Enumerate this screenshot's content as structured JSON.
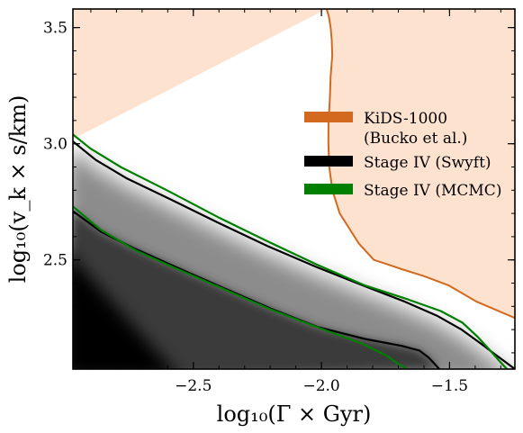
{
  "chart_data": {
    "type": "contour",
    "xlabel": "log₁₀(Γ × Gyr)",
    "ylabel": "log₁₀(v_k × s/km)",
    "xlim": [
      -2.97,
      -1.245
    ],
    "ylim": [
      2.03,
      3.58
    ],
    "x_ticks": [
      -2.5,
      -2.0,
      -1.5
    ],
    "x_tick_labels": [
      "−2.5",
      "−2.0",
      "−1.5"
    ],
    "y_ticks": [
      2.5,
      3.0,
      3.5
    ],
    "y_tick_labels": [
      "2.5",
      "3.0",
      "3.5"
    ],
    "x_minor_step": 0.1,
    "y_minor_step": 0.1,
    "legend_placement": "right, upper-middle",
    "legend": [
      {
        "label_lines": [
          "KiDS-1000",
          "(Bucko et al.)"
        ],
        "color": "#d2691e"
      },
      {
        "label_lines": [
          "Stage IV (Swyft)"
        ],
        "color": "#000000"
      },
      {
        "label_lines": [
          "Stage IV (MCMC)"
        ],
        "color": "#008000"
      }
    ],
    "series": [
      {
        "name": "KiDS-1000 (Bucko et al.)",
        "kind": "filled-region-boundary",
        "color": "#d2691e",
        "fill": "#fde3cf",
        "x": [
          -1.9798,
          -1.9715,
          -1.9643,
          -1.9598,
          -1.958,
          -1.964,
          -1.9673,
          -1.9725,
          -1.9731,
          -1.9694,
          -1.9576,
          -1.9288,
          -1.8766,
          -1.854,
          -1.7957,
          -1.739,
          -1.6866,
          -1.5991,
          -1.5033,
          -1.3936,
          -1.245
        ],
        "y": [
          3.58,
          3.55,
          3.5,
          3.45,
          3.38,
          3.29,
          3.19,
          3.09,
          3.0,
          2.9,
          2.8,
          2.7,
          2.61,
          2.57,
          2.5,
          2.48,
          2.46,
          2.43,
          2.39,
          2.32,
          2.25
        ]
      },
      {
        "name": "Stage IV (Swyft)",
        "kind": "contour-upper",
        "color": "#000000",
        "x": [
          -2.97,
          -2.8806,
          -2.7581,
          -2.5877,
          -2.4033,
          -2.2113,
          -2.0205,
          -1.8381,
          -1.6736,
          -1.5498,
          -1.4533,
          -1.3781,
          -1.3183,
          -1.2696,
          -1.245
        ],
        "y": [
          3.01,
          2.93,
          2.85,
          2.76,
          2.66,
          2.56,
          2.47,
          2.39,
          2.32,
          2.26,
          2.2,
          2.14,
          2.09,
          2.05,
          2.03
        ]
      },
      {
        "name": "Stage IV (Swyft)",
        "kind": "contour-lower",
        "color": "#000000",
        "x": [
          -2.97,
          -2.8586,
          -2.7313,
          -2.5695,
          -2.3837,
          -2.197,
          -2.0131,
          -1.8307,
          -1.6869,
          -1.6176,
          -1.5819,
          -1.5567,
          -1.54
        ],
        "y": [
          2.71,
          2.62,
          2.55,
          2.47,
          2.38,
          2.29,
          2.21,
          2.16,
          2.13,
          2.11,
          2.08,
          2.05,
          2.03
        ]
      },
      {
        "name": "Stage IV (MCMC)",
        "kind": "contour-upper",
        "color": "#008000",
        "x": [
          -2.97,
          -2.9025,
          -2.7839,
          -2.6036,
          -2.3964,
          -2.2101,
          -2.0181,
          -1.8303,
          -1.6622,
          -1.5346,
          -1.4499,
          -1.3912,
          -1.3413,
          -1.3017,
          -1.276
        ],
        "y": [
          3.04,
          2.98,
          2.9,
          2.8,
          2.68,
          2.58,
          2.48,
          2.39,
          2.33,
          2.28,
          2.23,
          2.17,
          2.11,
          2.06,
          2.03
        ]
      },
      {
        "name": "Stage IV (MCMC)",
        "kind": "contour-lower",
        "color": "#008000",
        "x": [
          -2.97,
          -2.8623,
          -2.7234,
          -2.561,
          -2.3921,
          -2.2052,
          -2.0169,
          -1.8421,
          -1.7497,
          -1.6964,
          -1.6657
        ],
        "y": [
          2.73,
          2.63,
          2.54,
          2.46,
          2.38,
          2.29,
          2.21,
          2.14,
          2.09,
          2.05,
          2.03
        ]
      }
    ]
  }
}
